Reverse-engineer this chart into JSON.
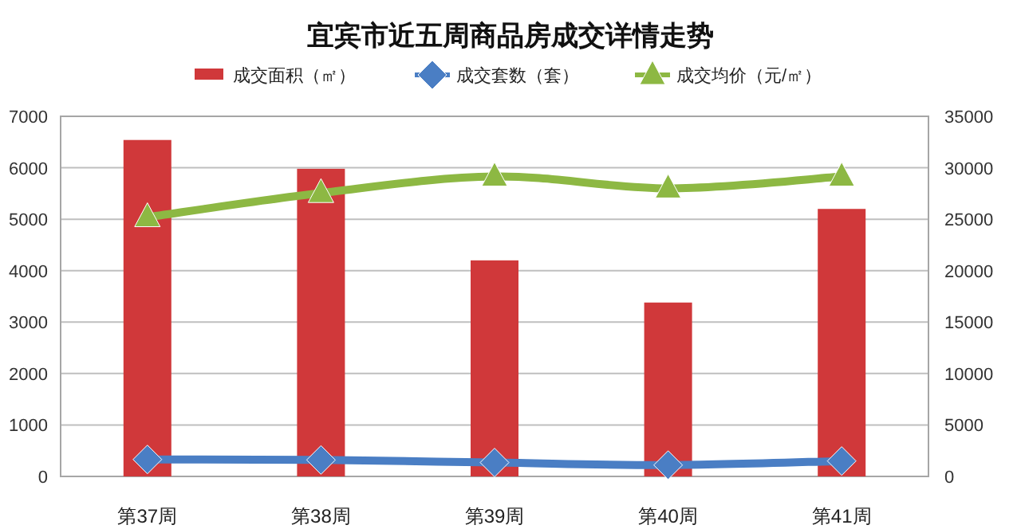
{
  "chart_data": {
    "type": "bar",
    "title": "宜宾市近五周商品房成交详情走势",
    "categories": [
      "第37周",
      "第38周",
      "第39周",
      "第40周",
      "第41周"
    ],
    "series": [
      {
        "name": "成交面积（㎡）",
        "axis": "y2",
        "color": "#d0383a",
        "values": [
          32700,
          29900,
          21000,
          16900,
          26000
        ]
      },
      {
        "name": "成交套数（套）",
        "type": "line",
        "color": "#4a7ec4",
        "marker": "diamond",
        "values": [
          330,
          320,
          270,
          220,
          300
        ]
      },
      {
        "name": "成交均价（元/㎡）",
        "type": "line",
        "color": "#8db843",
        "marker": "triangle",
        "values": [
          5040,
          5510,
          5830,
          5600,
          5830
        ]
      }
    ],
    "ylim": [
      0,
      7000
    ],
    "yticks": [
      0,
      1000,
      2000,
      3000,
      4000,
      5000,
      6000,
      7000
    ],
    "y2lim": [
      0,
      35000
    ],
    "y2ticks": [
      0,
      5000,
      10000,
      15000,
      20000,
      25000,
      30000,
      35000
    ],
    "grid": "y",
    "legend": "top"
  }
}
